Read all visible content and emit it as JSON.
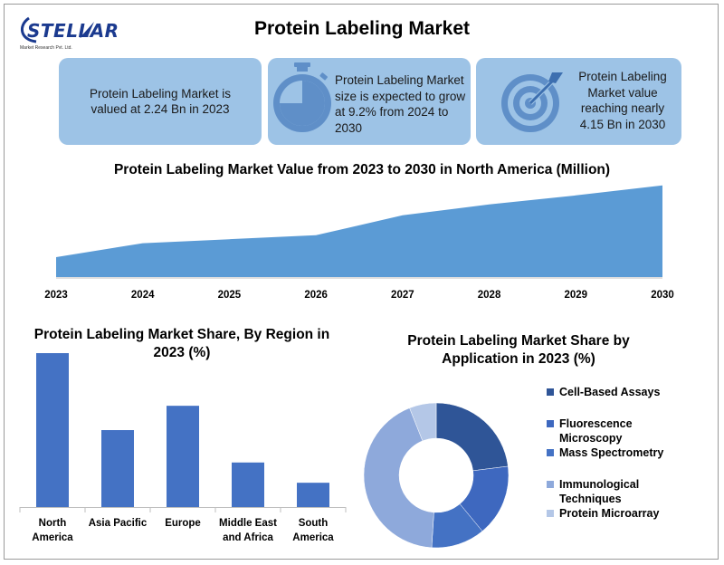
{
  "brand": {
    "logo_text": "STELLAR",
    "logo_sub": "Market Research Pvt. Ltd."
  },
  "title": "Protein Labeling Market",
  "cards": [
    {
      "text": "Protein Labeling Market is valued at 2.24 Bn in 2023",
      "icon": "none"
    },
    {
      "text": "Protein Labeling Market size is expected to grow at 9.2% from 2024 to 2030",
      "icon": "stopwatch-icon"
    },
    {
      "text": "Protein Labeling Market value reaching nearly 4.15 Bn in 2030",
      "icon": "target-icon"
    }
  ],
  "colors": {
    "card": "#9dc3e6",
    "area": "#5b9bd5",
    "bar": "#4472c4",
    "icon": "#2e75b6"
  },
  "chart_data": [
    {
      "type": "area",
      "title": "Protein Labeling Market Value from 2023 to 2030 in North America (Million)",
      "x": [
        "2023",
        "2024",
        "2025",
        "2026",
        "2027",
        "2028",
        "2029",
        "2030"
      ],
      "values": [
        20,
        34,
        38,
        42,
        62,
        73,
        82,
        92
      ],
      "ylim": [
        0,
        100
      ],
      "grid": false,
      "yaxis_visible": false
    },
    {
      "type": "bar",
      "title": "Protein Labeling Market Share, By Region in 2023 (%)",
      "categories": [
        "North America",
        "Asia Pacific",
        "Europe",
        "Middle East and Africa",
        "South America"
      ],
      "values": [
        38,
        19,
        25,
        11,
        6
      ],
      "ylim": [
        0,
        38
      ]
    },
    {
      "type": "pie",
      "donut": true,
      "title": "Protein Labeling Market Share by Application in 2023 (%)",
      "legend_position": "right",
      "series": [
        {
          "name": "Cell-Based Assays",
          "value": 23,
          "color": "#2f5597"
        },
        {
          "name": "Fluorescence Microscopy",
          "value": 16,
          "color": "#3e68bf"
        },
        {
          "name": "Mass Spectrometry",
          "value": 12,
          "color": "#4472c4"
        },
        {
          "name": "Immunological Techniques",
          "value": 43,
          "color": "#8ea9db"
        },
        {
          "name": "Protein Microarray",
          "value": 6,
          "color": "#b4c7e7"
        }
      ]
    }
  ]
}
